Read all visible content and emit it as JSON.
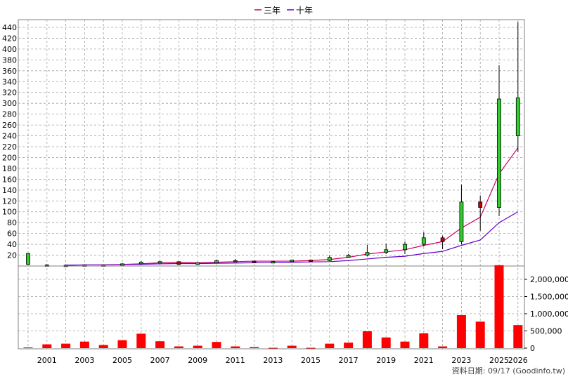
{
  "legend": {
    "items": [
      {
        "label": "三年",
        "color": "#cc0066"
      },
      {
        "label": "十年",
        "color": "#6600cc"
      }
    ]
  },
  "footer": {
    "source": "資料日期: 09/17  (Goodinfo.tw)"
  },
  "colors": {
    "up_candle": "#33cc33",
    "down_candle": "#cc0000",
    "volume_bar": "#ff0000",
    "ma3": "#cc0066",
    "ma10": "#6600cc",
    "grid": "#a0a0a0"
  },
  "chart_data": [
    {
      "type": "candlestick",
      "title": "",
      "x_tick_labels": [
        "2001",
        "2003",
        "2005",
        "2007",
        "2009",
        "2011",
        "2013",
        "2015",
        "2017",
        "2019",
        "2021",
        "2023",
        "2025",
        "2026"
      ],
      "y_ticks": [
        20,
        40,
        60,
        80,
        100,
        120,
        140,
        160,
        180,
        200,
        220,
        240,
        260,
        280,
        300,
        320,
        340,
        360,
        380,
        400,
        420,
        440
      ],
      "ylim": [
        0,
        450
      ],
      "grid": true,
      "candles": [
        {
          "year": 2000,
          "open": 3,
          "high": 24,
          "low": 2,
          "close": 23
        },
        {
          "year": 2001,
          "open": 2,
          "high": 3,
          "low": 1,
          "close": 1.5
        },
        {
          "year": 2002,
          "open": 1.5,
          "high": 2,
          "low": 1,
          "close": 1.5
        },
        {
          "year": 2003,
          "open": 1.5,
          "high": 2,
          "low": 1,
          "close": 2
        },
        {
          "year": 2004,
          "open": 2,
          "high": 2.5,
          "low": 1.5,
          "close": 2
        },
        {
          "year": 2005,
          "open": 2,
          "high": 5,
          "low": 1.5,
          "close": 4
        },
        {
          "year": 2006,
          "open": 4,
          "high": 9,
          "low": 3.5,
          "close": 7
        },
        {
          "year": 2007,
          "open": 7,
          "high": 10,
          "low": 6,
          "close": 8
        },
        {
          "year": 2008,
          "open": 8,
          "high": 8,
          "low": 2,
          "close": 3
        },
        {
          "year": 2009,
          "open": 3,
          "high": 7,
          "low": 2.5,
          "close": 6
        },
        {
          "year": 2010,
          "open": 6,
          "high": 12,
          "low": 5,
          "close": 10
        },
        {
          "year": 2011,
          "open": 10,
          "high": 13,
          "low": 8,
          "close": 9
        },
        {
          "year": 2012,
          "open": 9,
          "high": 10,
          "low": 7,
          "close": 8
        },
        {
          "year": 2013,
          "open": 8,
          "high": 9,
          "low": 7,
          "close": 8
        },
        {
          "year": 2014,
          "open": 8,
          "high": 12,
          "low": 7,
          "close": 11
        },
        {
          "year": 2015,
          "open": 11,
          "high": 12,
          "low": 9,
          "close": 10
        },
        {
          "year": 2016,
          "open": 10,
          "high": 20,
          "low": 9,
          "close": 16
        },
        {
          "year": 2017,
          "open": 16,
          "high": 22,
          "low": 15,
          "close": 20
        },
        {
          "year": 2018,
          "open": 20,
          "high": 39,
          "low": 18,
          "close": 25
        },
        {
          "year": 2019,
          "open": 25,
          "high": 41,
          "low": 22,
          "close": 30
        },
        {
          "year": 2020,
          "open": 30,
          "high": 45,
          "low": 22,
          "close": 40
        },
        {
          "year": 2021,
          "open": 40,
          "high": 62,
          "low": 36,
          "close": 52
        },
        {
          "year": 2022,
          "open": 52,
          "high": 56,
          "low": 31,
          "close": 45
        },
        {
          "year": 2023,
          "open": 45,
          "high": 150,
          "low": 40,
          "close": 118
        },
        {
          "year": 2024,
          "open": 118,
          "high": 130,
          "low": 65,
          "close": 108
        },
        {
          "year": 2025,
          "open": 108,
          "high": 370,
          "low": 92,
          "close": 308
        },
        {
          "year": 2026,
          "open": 240,
          "high": 450,
          "low": 210,
          "close": 310
        }
      ],
      "series": [
        {
          "name": "三年",
          "x": [
            2002,
            2003,
            2004,
            2005,
            2006,
            2007,
            2008,
            2009,
            2010,
            2011,
            2012,
            2013,
            2014,
            2015,
            2016,
            2017,
            2018,
            2019,
            2020,
            2021,
            2022,
            2023,
            2024,
            2025,
            2026
          ],
          "values": [
            1.5,
            2,
            2,
            3,
            4,
            6,
            7,
            6,
            7,
            8,
            9,
            9,
            9,
            10,
            12,
            16,
            22,
            26,
            30,
            38,
            45,
            70,
            90,
            170,
            218
          ]
        },
        {
          "name": "十年",
          "x": [
            2002,
            2003,
            2004,
            2005,
            2006,
            2007,
            2008,
            2009,
            2010,
            2011,
            2012,
            2013,
            2014,
            2015,
            2016,
            2017,
            2018,
            2019,
            2020,
            2021,
            2022,
            2023,
            2024,
            2025,
            2026
          ],
          "values": [
            1.5,
            2,
            2,
            2.5,
            3,
            4,
            4.5,
            4.5,
            5,
            5.5,
            6,
            6.5,
            7,
            7.5,
            8,
            10,
            13,
            16,
            18,
            23,
            27,
            38,
            48,
            80,
            100
          ]
        }
      ]
    },
    {
      "type": "bar",
      "title": "",
      "y_ticks": [
        0,
        500000,
        1000000,
        1500000,
        2000000
      ],
      "y_tick_labels": [
        "0",
        "500,000",
        "1,000,000",
        "1,500,000",
        "2,000,000"
      ],
      "ylim": [
        0,
        2500000
      ],
      "grid": true,
      "x": [
        2000,
        2001,
        2002,
        2003,
        2004,
        2005,
        2006,
        2007,
        2008,
        2009,
        2010,
        2011,
        2012,
        2013,
        2014,
        2015,
        2016,
        2017,
        2018,
        2019,
        2020,
        2021,
        2022,
        2023,
        2024,
        2025,
        2026
      ],
      "values": [
        20000,
        110000,
        130000,
        190000,
        90000,
        230000,
        420000,
        200000,
        50000,
        70000,
        180000,
        50000,
        30000,
        10000,
        70000,
        10000,
        130000,
        160000,
        490000,
        310000,
        190000,
        430000,
        50000,
        960000,
        770000,
        2410000,
        670000
      ]
    }
  ]
}
